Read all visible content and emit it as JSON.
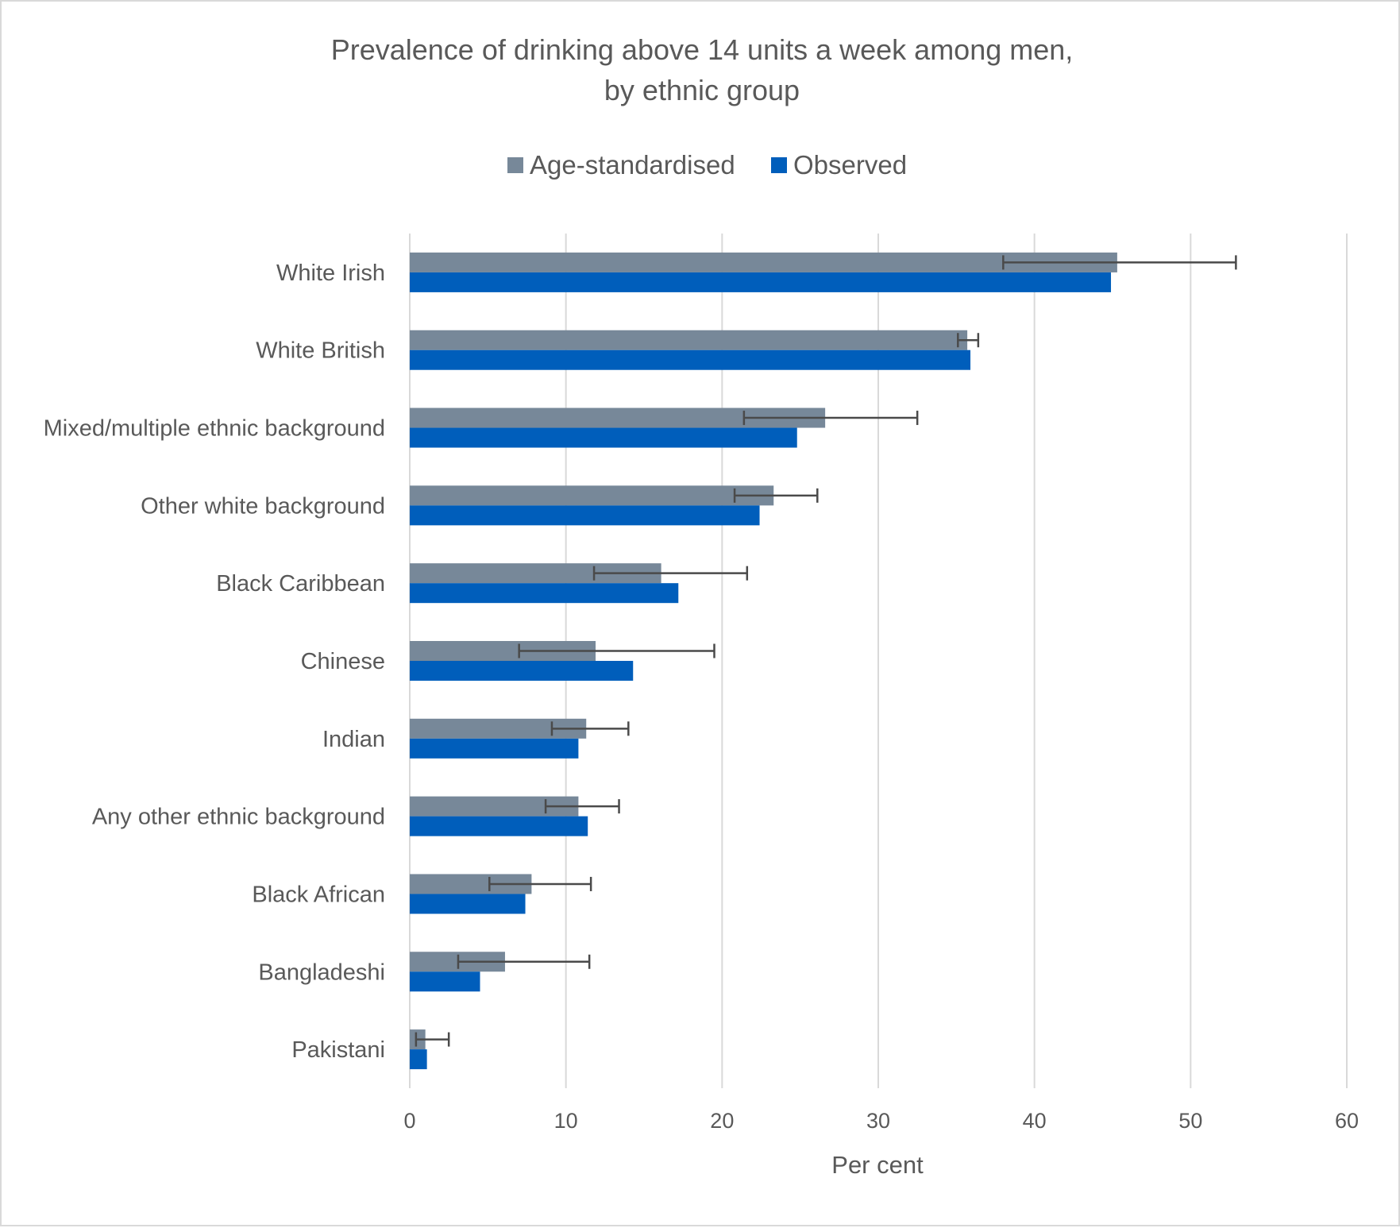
{
  "chart_data": {
    "type": "bar",
    "orientation": "horizontal",
    "title_lines": [
      "Prevalence of drinking above 14 units a week among men,",
      "by ethnic group"
    ],
    "xlabel": "Per cent",
    "ylabel": "",
    "xlim": [
      0,
      60
    ],
    "xticks": [
      0,
      10,
      20,
      30,
      40,
      50,
      60
    ],
    "grid": true,
    "legend_position": "top",
    "categories": [
      "White Irish",
      "White British",
      "Mixed/multiple ethnic background",
      "Other white background",
      "Black Caribbean",
      "Chinese",
      "Indian",
      "Any other ethnic background",
      "Black African",
      "Bangladeshi",
      "Pakistani"
    ],
    "series": [
      {
        "name": "Age-standardised",
        "color": "#778899",
        "values": [
          45.3,
          35.7,
          26.6,
          23.3,
          16.1,
          11.9,
          11.3,
          10.8,
          7.8,
          6.1,
          1.0
        ],
        "error_low": [
          38.0,
          35.1,
          21.4,
          20.8,
          11.8,
          7.0,
          9.1,
          8.7,
          5.1,
          3.1,
          0.4
        ],
        "error_high": [
          52.9,
          36.4,
          32.5,
          26.1,
          21.6,
          19.5,
          14.0,
          13.4,
          11.6,
          11.5,
          2.5
        ]
      },
      {
        "name": "Observed",
        "color": "#005ebb",
        "values": [
          44.9,
          35.9,
          24.8,
          22.4,
          17.2,
          14.3,
          10.8,
          11.4,
          7.4,
          4.5,
          1.1
        ]
      }
    ]
  }
}
